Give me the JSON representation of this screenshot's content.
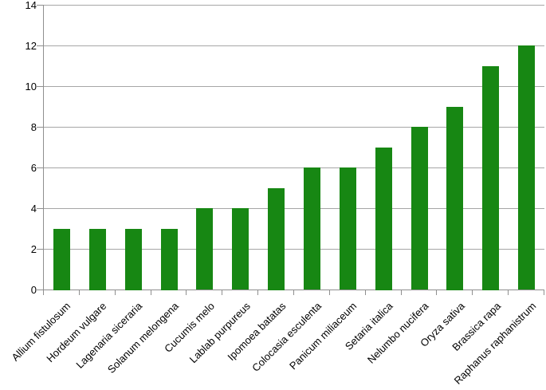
{
  "figure": {
    "background_color": "#ffffff"
  },
  "chart_data": {
    "type": "bar",
    "title": "",
    "xlabel": "",
    "ylabel": "",
    "categories": [
      "Allium fistulosum",
      "Hordeum vulgare",
      "Lagenaria siceraria",
      "Solanum melongena",
      "Cucumis melo",
      "Lablab purpureus",
      "Ipomoea batatas",
      "Colocasia esculenta",
      "Panicum miliaceum",
      "Setaria italica",
      "Nelumbo nucifera",
      "Oryza sativa",
      "Brassica rapa",
      "Raphanus raphanistrum"
    ],
    "values": [
      3,
      3,
      3,
      3,
      4,
      4,
      5,
      6,
      6,
      7,
      8,
      9,
      11,
      12
    ],
    "ylim": [
      0,
      14
    ],
    "yticks": [
      0,
      2,
      4,
      6,
      8,
      10,
      12,
      14
    ],
    "grid": true,
    "legend": false,
    "x_label_rotation_deg": 45,
    "colors": {
      "bar": "#178713",
      "gridline": "#a6a6a6",
      "axis": "#8f8f8f",
      "tick": "#8f8f8f",
      "text": "#000000"
    }
  }
}
